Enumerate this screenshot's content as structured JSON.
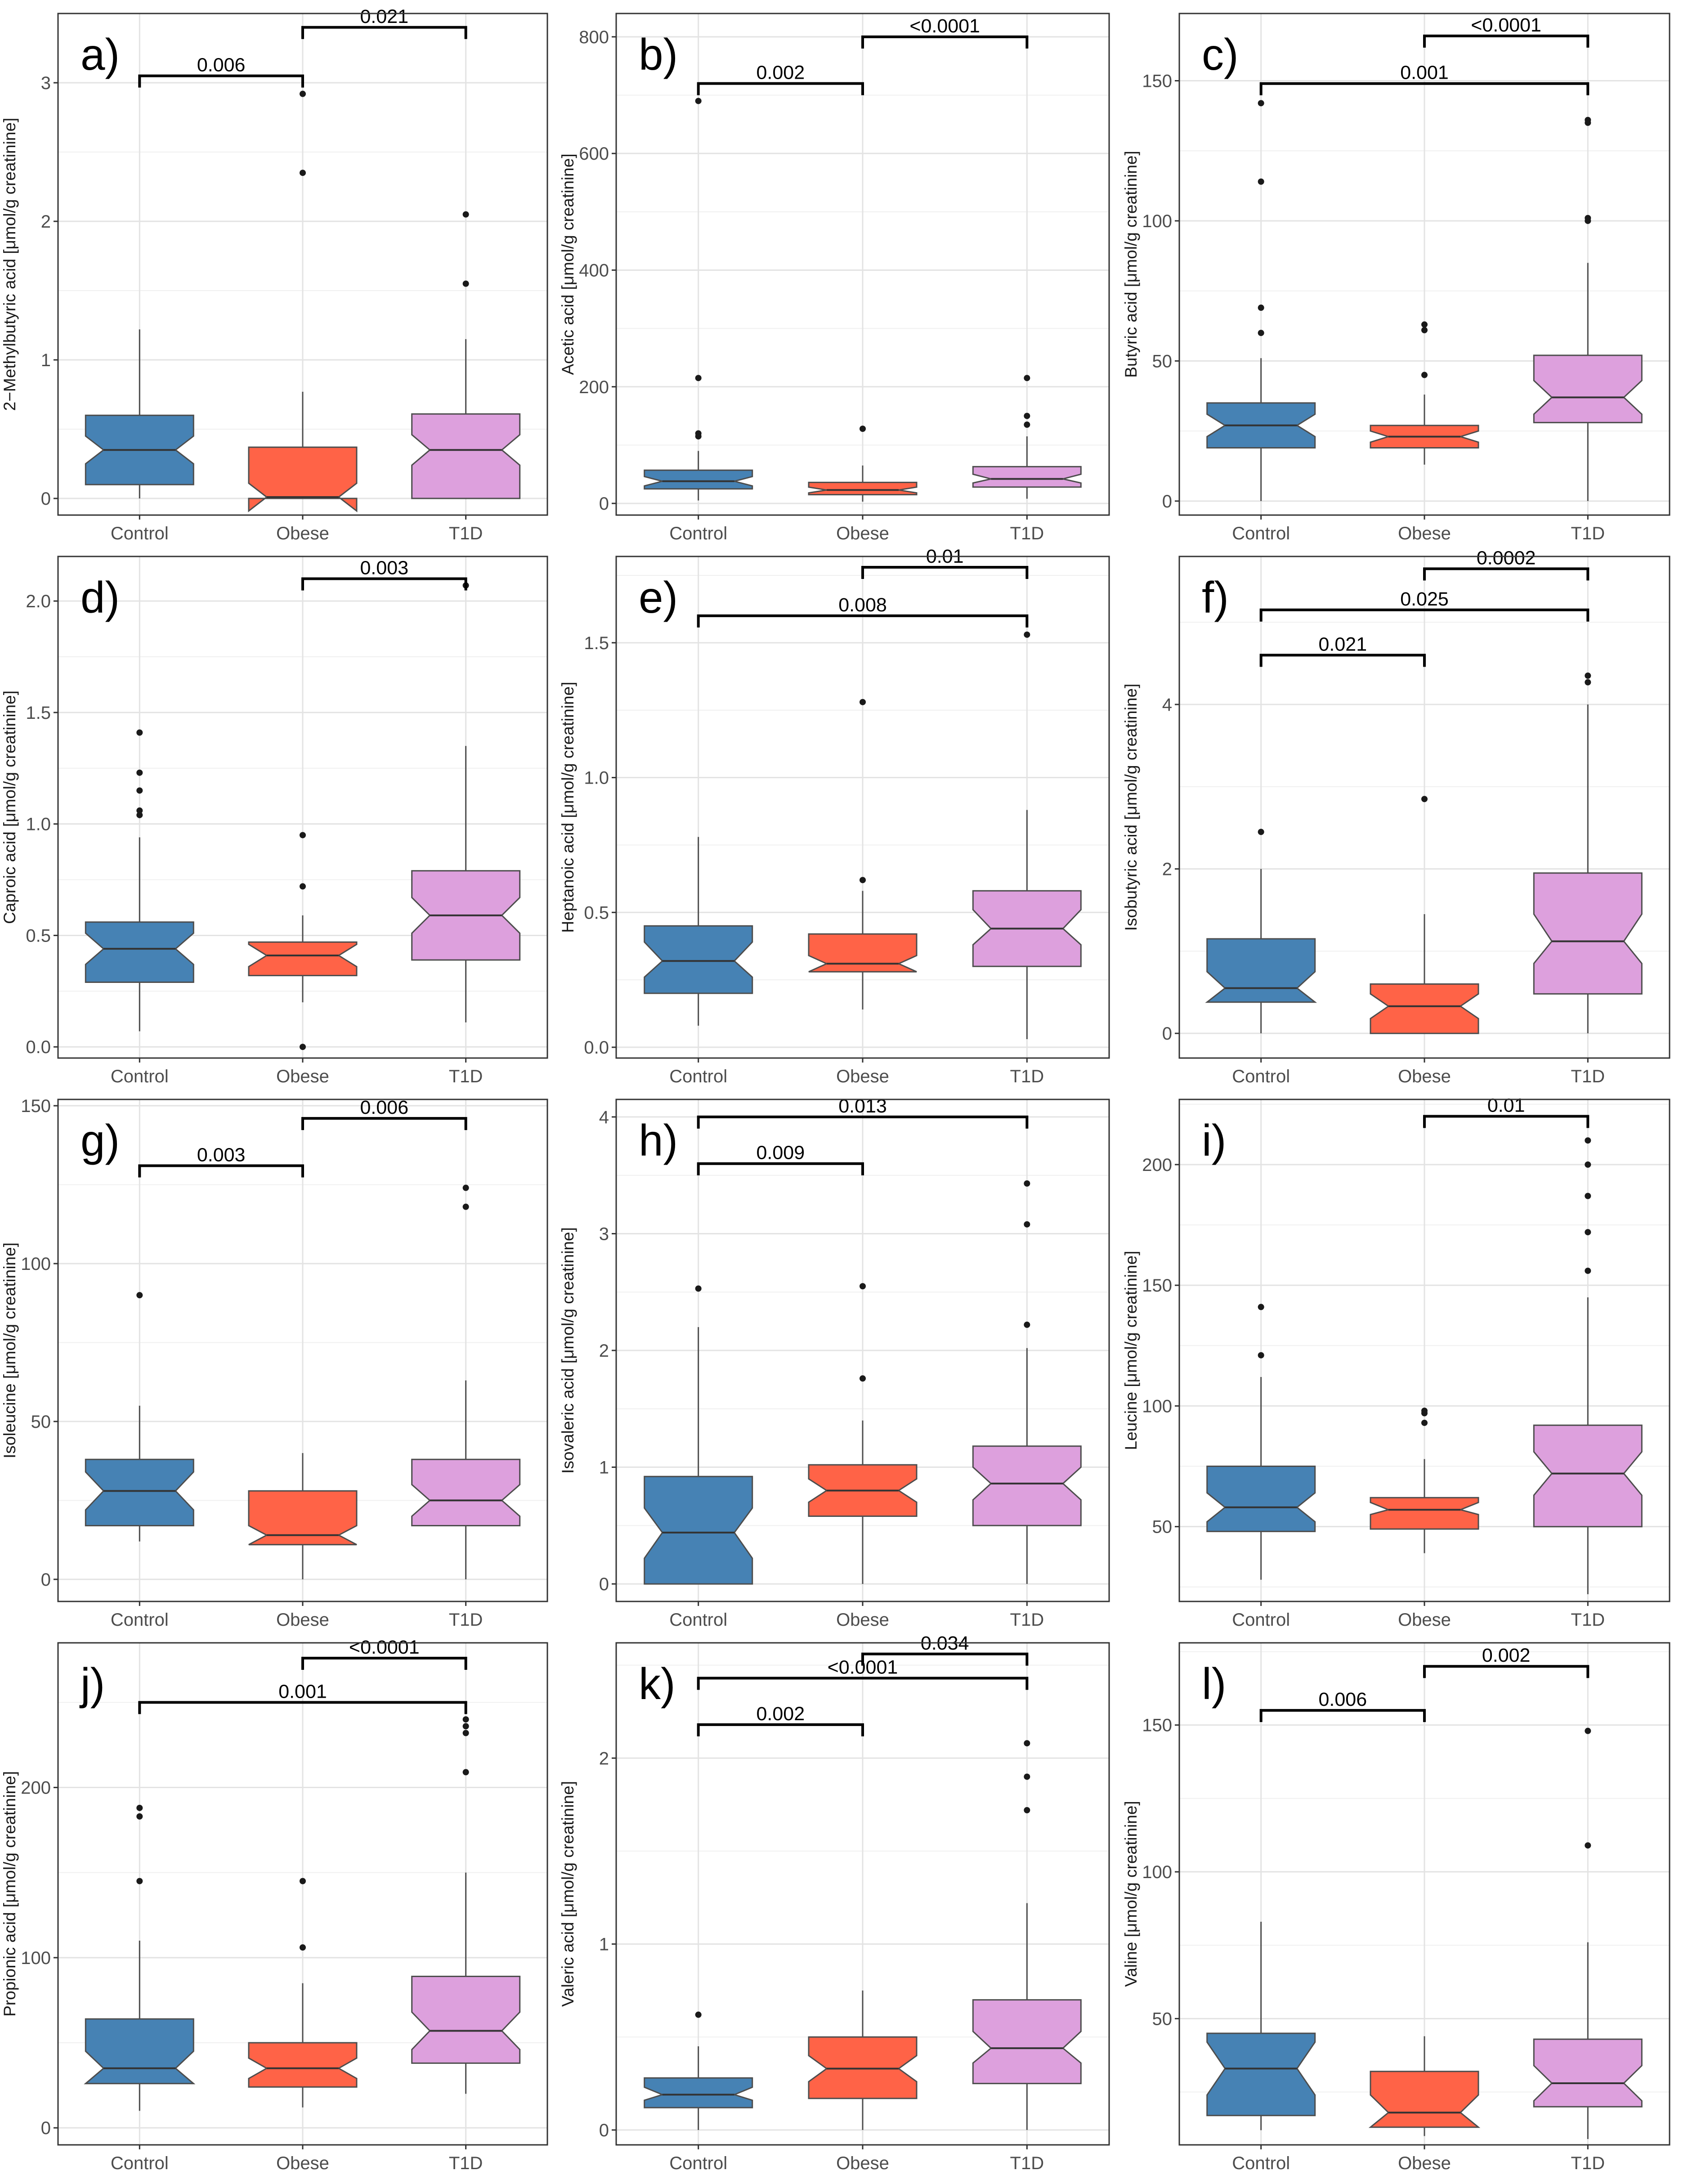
{
  "colors": {
    "Control": "#4682b4",
    "Obese": "#ff6347",
    "T1D": "#dda0dd"
  },
  "chart_data": [
    {
      "label": "a)",
      "ylabel": "2−Methylbutyric acid [μmol/g creatinine]",
      "yticks": [
        0,
        1,
        2,
        3
      ],
      "ylim": [
        -0.12,
        3.5
      ],
      "categories": [
        "Control",
        "Obese",
        "T1D"
      ],
      "boxes": [
        {
          "group": "Control",
          "q1": 0.1,
          "median": 0.35,
          "q3": 0.6,
          "notch": [
            0.25,
            0.45
          ],
          "whisker": [
            0,
            1.22
          ],
          "outliers": []
        },
        {
          "group": "Obese",
          "q1": 0,
          "median": 0.01,
          "q3": 0.37,
          "notch": [
            -0.09,
            0.11
          ],
          "whisker": [
            0,
            0.77
          ],
          "outliers": [
            2.35,
            2.92
          ]
        },
        {
          "group": "T1D",
          "q1": 0,
          "median": 0.35,
          "q3": 0.61,
          "notch": [
            0.24,
            0.46
          ],
          "whisker": [
            0,
            1.15
          ],
          "outliers": [
            1.55,
            2.05
          ]
        }
      ],
      "brackets": [
        {
          "from": 0,
          "to": 1,
          "y": 3.05,
          "label": "0.006"
        },
        {
          "from": 1,
          "to": 2,
          "y": 3.4,
          "label": "0.021"
        }
      ]
    },
    {
      "label": "b)",
      "ylabel": "Acetic acid [μmol/g creatinine]",
      "yticks": [
        0,
        200,
        400,
        600,
        800
      ],
      "ylim": [
        -20,
        840
      ],
      "categories": [
        "Control",
        "Obese",
        "T1D"
      ],
      "boxes": [
        {
          "group": "Control",
          "q1": 25,
          "median": 38,
          "q3": 57,
          "notch": [
            30,
            46
          ],
          "whisker": [
            5,
            90
          ],
          "outliers": [
            115,
            120,
            215,
            690
          ]
        },
        {
          "group": "Obese",
          "q1": 15,
          "median": 23,
          "q3": 36,
          "notch": [
            18,
            28
          ],
          "whisker": [
            3,
            65
          ],
          "outliers": [
            128
          ]
        },
        {
          "group": "T1D",
          "q1": 28,
          "median": 42,
          "q3": 63,
          "notch": [
            35,
            50
          ],
          "whisker": [
            8,
            115
          ],
          "outliers": [
            135,
            150,
            215
          ]
        }
      ],
      "brackets": [
        {
          "from": 0,
          "to": 1,
          "y": 720,
          "label": "0.002"
        },
        {
          "from": 1,
          "to": 2,
          "y": 800,
          "label": "<0.0001"
        }
      ]
    },
    {
      "label": "c)",
      "ylabel": "Butyric acid [μmol/g creatinine]",
      "yticks": [
        0,
        50,
        100,
        150
      ],
      "ylim": [
        -5,
        174
      ],
      "categories": [
        "Control",
        "Obese",
        "T1D"
      ],
      "boxes": [
        {
          "group": "Control",
          "q1": 19,
          "median": 27,
          "q3": 35,
          "notch": [
            23,
            31
          ],
          "whisker": [
            0,
            51
          ],
          "outliers": [
            60,
            69,
            114,
            142
          ]
        },
        {
          "group": "Obese",
          "q1": 19,
          "median": 23,
          "q3": 27,
          "notch": [
            21,
            25
          ],
          "whisker": [
            13,
            38
          ],
          "outliers": [
            45,
            61,
            63
          ]
        },
        {
          "group": "T1D",
          "q1": 28,
          "median": 37,
          "q3": 52,
          "notch": [
            31,
            43
          ],
          "whisker": [
            0,
            85
          ],
          "outliers": [
            100,
            101,
            135,
            136
          ]
        }
      ],
      "brackets": [
        {
          "from": 0,
          "to": 2,
          "y": 149,
          "label": "0.001"
        },
        {
          "from": 1,
          "to": 2,
          "y": 166,
          "label": "<0.0001"
        }
      ]
    },
    {
      "label": "d)",
      "ylabel": "Caproic acid [μmol/g creatinine]",
      "yticks": [
        0,
        0.5,
        1,
        1.5,
        2
      ],
      "ylim": [
        -0.05,
        2.2
      ],
      "ytickfmt": "fixed1",
      "categories": [
        "Control",
        "Obese",
        "T1D"
      ],
      "boxes": [
        {
          "group": "Control",
          "q1": 0.29,
          "median": 0.44,
          "q3": 0.56,
          "notch": [
            0.37,
            0.51
          ],
          "whisker": [
            0.07,
            0.94
          ],
          "outliers": [
            1.04,
            1.06,
            1.15,
            1.23,
            1.41
          ]
        },
        {
          "group": "Obese",
          "q1": 0.32,
          "median": 0.41,
          "q3": 0.47,
          "notch": [
            0.36,
            0.46
          ],
          "whisker": [
            0.2,
            0.59
          ],
          "outliers": [
            0,
            0.72,
            0.95
          ]
        },
        {
          "group": "T1D",
          "q1": 0.39,
          "median": 0.59,
          "q3": 0.79,
          "notch": [
            0.51,
            0.67
          ],
          "whisker": [
            0.11,
            1.35
          ],
          "outliers": [
            2.07
          ]
        }
      ],
      "brackets": [
        {
          "from": 1,
          "to": 2,
          "y": 2.1,
          "label": "0.003"
        }
      ]
    },
    {
      "label": "e)",
      "ylabel": "Heptanoic acid [μmol/g creatinine]",
      "yticks": [
        0,
        0.5,
        1,
        1.5
      ],
      "ylim": [
        -0.04,
        1.82
      ],
      "ytickfmt": "fixed1",
      "categories": [
        "Control",
        "Obese",
        "T1D"
      ],
      "boxes": [
        {
          "group": "Control",
          "q1": 0.2,
          "median": 0.32,
          "q3": 0.45,
          "notch": [
            0.26,
            0.39
          ],
          "whisker": [
            0.08,
            0.78
          ],
          "outliers": []
        },
        {
          "group": "Obese",
          "q1": 0.28,
          "median": 0.31,
          "q3": 0.42,
          "notch": [
            0.28,
            0.34
          ],
          "whisker": [
            0.14,
            0.58
          ],
          "outliers": [
            0.62,
            1.28
          ]
        },
        {
          "group": "T1D",
          "q1": 0.3,
          "median": 0.44,
          "q3": 0.58,
          "notch": [
            0.38,
            0.51
          ],
          "whisker": [
            0.03,
            0.88
          ],
          "outliers": [
            1.53
          ]
        }
      ],
      "brackets": [
        {
          "from": 0,
          "to": 2,
          "y": 1.6,
          "label": "0.008"
        },
        {
          "from": 1,
          "to": 2,
          "y": 1.78,
          "label": "0.01"
        }
      ]
    },
    {
      "label": "f)",
      "ylabel": "Isobutyric acid [μmol/g creatinine]",
      "yticks": [
        0,
        2,
        4
      ],
      "ylim": [
        -0.3,
        5.8
      ],
      "categories": [
        "Control",
        "Obese",
        "T1D"
      ],
      "boxes": [
        {
          "group": "Control",
          "q1": 0.38,
          "median": 0.55,
          "q3": 1.15,
          "notch": [
            0.38,
            0.75
          ],
          "whisker": [
            0,
            2
          ],
          "outliers": [
            2.45
          ]
        },
        {
          "group": "Obese",
          "q1": 0,
          "median": 0.33,
          "q3": 0.6,
          "notch": [
            0.18,
            0.48
          ],
          "whisker": [
            0,
            1.45
          ],
          "outliers": [
            2.85
          ]
        },
        {
          "group": "T1D",
          "q1": 0.48,
          "median": 1.12,
          "q3": 1.95,
          "notch": [
            0.85,
            1.45
          ],
          "whisker": [
            0,
            4
          ],
          "outliers": [
            4.27,
            4.35
          ]
        }
      ],
      "brackets": [
        {
          "from": 0,
          "to": 1,
          "y": 4.6,
          "label": "0.021"
        },
        {
          "from": 0,
          "to": 2,
          "y": 5.15,
          "label": "0.025"
        },
        {
          "from": 1,
          "to": 2,
          "y": 5.65,
          "label": "0.0002"
        }
      ]
    },
    {
      "label": "g)",
      "ylabel": "Isoleucine [μmol/g creatinine]",
      "yticks": [
        0,
        50,
        100,
        150
      ],
      "ylim": [
        -7,
        152
      ],
      "categories": [
        "Control",
        "Obese",
        "T1D"
      ],
      "boxes": [
        {
          "group": "Control",
          "q1": 17,
          "median": 28,
          "q3": 38,
          "notch": [
            22,
            34
          ],
          "whisker": [
            12,
            55
          ],
          "outliers": [
            90
          ]
        },
        {
          "group": "Obese",
          "q1": 11,
          "median": 14,
          "q3": 28,
          "notch": [
            11,
            17
          ],
          "whisker": [
            0,
            40
          ],
          "outliers": []
        },
        {
          "group": "T1D",
          "q1": 17,
          "median": 25,
          "q3": 38,
          "notch": [
            20,
            30
          ],
          "whisker": [
            0,
            63
          ],
          "outliers": [
            118,
            124
          ]
        }
      ],
      "brackets": [
        {
          "from": 0,
          "to": 1,
          "y": 131,
          "label": "0.003"
        },
        {
          "from": 1,
          "to": 2,
          "y": 146,
          "label": "0.006"
        }
      ]
    },
    {
      "label": "h)",
      "ylabel": "Isovaleric acid [μmol/g creatinine]",
      "yticks": [
        0,
        1,
        2,
        3,
        4
      ],
      "ylim": [
        -0.15,
        4.15
      ],
      "categories": [
        "Control",
        "Obese",
        "T1D"
      ],
      "boxes": [
        {
          "group": "Control",
          "q1": 0,
          "median": 0.44,
          "q3": 0.92,
          "notch": [
            0.22,
            0.65
          ],
          "whisker": [
            0,
            2.2
          ],
          "outliers": [
            2.53
          ]
        },
        {
          "group": "Obese",
          "q1": 0.58,
          "median": 0.8,
          "q3": 1.02,
          "notch": [
            0.7,
            0.9
          ],
          "whisker": [
            0,
            1.4
          ],
          "outliers": [
            1.76,
            2.55
          ]
        },
        {
          "group": "T1D",
          "q1": 0.5,
          "median": 0.86,
          "q3": 1.18,
          "notch": [
            0.72,
            1
          ],
          "whisker": [
            0,
            2.02
          ],
          "outliers": [
            2.22,
            3.08,
            3.43
          ]
        }
      ],
      "brackets": [
        {
          "from": 0,
          "to": 1,
          "y": 3.6,
          "label": "0.009"
        },
        {
          "from": 0,
          "to": 2,
          "y": 4.0,
          "label": "0.013"
        }
      ]
    },
    {
      "label": "i)",
      "ylabel": "Leucine [μmol/g creatinine]",
      "yticks": [
        50,
        100,
        150,
        200
      ],
      "ylim": [
        19,
        227
      ],
      "categories": [
        "Control",
        "Obese",
        "T1D"
      ],
      "boxes": [
        {
          "group": "Control",
          "q1": 48,
          "median": 58,
          "q3": 75,
          "notch": [
            52,
            64
          ],
          "whisker": [
            28,
            112
          ],
          "outliers": [
            121,
            141
          ]
        },
        {
          "group": "Obese",
          "q1": 49,
          "median": 57,
          "q3": 62,
          "notch": [
            55,
            60
          ],
          "whisker": [
            39,
            78
          ],
          "outliers": [
            93,
            97,
            98
          ]
        },
        {
          "group": "T1D",
          "q1": 50,
          "median": 72,
          "q3": 92,
          "notch": [
            63,
            81
          ],
          "whisker": [
            22,
            145
          ],
          "outliers": [
            156,
            172,
            187,
            200,
            210
          ]
        }
      ],
      "brackets": [
        {
          "from": 1,
          "to": 2,
          "y": 220,
          "label": "0.01"
        }
      ]
    },
    {
      "label": "j)",
      "ylabel": "Propionic acid [μmol/g creatinine]",
      "yticks": [
        0,
        100,
        200
      ],
      "ylim": [
        -10,
        285
      ],
      "categories": [
        "Control",
        "Obese",
        "T1D"
      ],
      "boxes": [
        {
          "group": "Control",
          "q1": 26,
          "median": 35,
          "q3": 64,
          "notch": [
            26,
            45
          ],
          "whisker": [
            10,
            110
          ],
          "outliers": [
            145,
            183,
            188
          ]
        },
        {
          "group": "Obese",
          "q1": 24,
          "median": 35,
          "q3": 50,
          "notch": [
            29,
            41
          ],
          "whisker": [
            12,
            85
          ],
          "outliers": [
            106,
            145
          ]
        },
        {
          "group": "T1D",
          "q1": 38,
          "median": 57,
          "q3": 89,
          "notch": [
            46,
            68
          ],
          "whisker": [
            20,
            150
          ],
          "outliers": [
            209,
            232,
            236,
            240
          ]
        }
      ],
      "brackets": [
        {
          "from": 0,
          "to": 2,
          "y": 250,
          "label": "0.001"
        },
        {
          "from": 1,
          "to": 2,
          "y": 276,
          "label": "<0.0001"
        }
      ]
    },
    {
      "label": "k)",
      "ylabel": "Valeric acid [μmol/g creatinine]",
      "yticks": [
        0,
        1,
        2
      ],
      "ylim": [
        -0.08,
        2.62
      ],
      "categories": [
        "Control",
        "Obese",
        "T1D"
      ],
      "boxes": [
        {
          "group": "Control",
          "q1": 0.12,
          "median": 0.19,
          "q3": 0.28,
          "notch": [
            0.16,
            0.23
          ],
          "whisker": [
            0,
            0.45
          ],
          "outliers": [
            0.62
          ]
        },
        {
          "group": "Obese",
          "q1": 0.17,
          "median": 0.33,
          "q3": 0.5,
          "notch": [
            0.26,
            0.4
          ],
          "whisker": [
            0,
            0.75
          ],
          "outliers": []
        },
        {
          "group": "T1D",
          "q1": 0.25,
          "median": 0.44,
          "q3": 0.7,
          "notch": [
            0.36,
            0.53
          ],
          "whisker": [
            0,
            1.22
          ],
          "outliers": [
            1.72,
            1.9,
            2.08
          ]
        }
      ],
      "brackets": [
        {
          "from": 0,
          "to": 1,
          "y": 2.18,
          "label": "0.002"
        },
        {
          "from": 0,
          "to": 2,
          "y": 2.43,
          "label": "<0.0001"
        },
        {
          "from": 1,
          "to": 2,
          "y": 2.56,
          "label": "0.034"
        }
      ]
    },
    {
      "label": "l)",
      "ylabel": "Valine [μmol/g creatinine]",
      "yticks": [
        50,
        100,
        150
      ],
      "ylim": [
        7,
        178
      ],
      "categories": [
        "Control",
        "Obese",
        "T1D"
      ],
      "boxes": [
        {
          "group": "Control",
          "q1": 17,
          "median": 33,
          "q3": 45,
          "notch": [
            24,
            42
          ],
          "whisker": [
            12,
            83
          ],
          "outliers": []
        },
        {
          "group": "Obese",
          "q1": 13,
          "median": 18,
          "q3": 32,
          "notch": [
            13,
            24
          ],
          "whisker": [
            10,
            44
          ],
          "outliers": []
        },
        {
          "group": "T1D",
          "q1": 20,
          "median": 28,
          "q3": 43,
          "notch": [
            22,
            34
          ],
          "whisker": [
            9,
            76
          ],
          "outliers": [
            109,
            148
          ]
        }
      ],
      "brackets": [
        {
          "from": 0,
          "to": 1,
          "y": 155,
          "label": "0.006"
        },
        {
          "from": 1,
          "to": 2,
          "y": 170,
          "label": "0.002"
        }
      ]
    }
  ]
}
